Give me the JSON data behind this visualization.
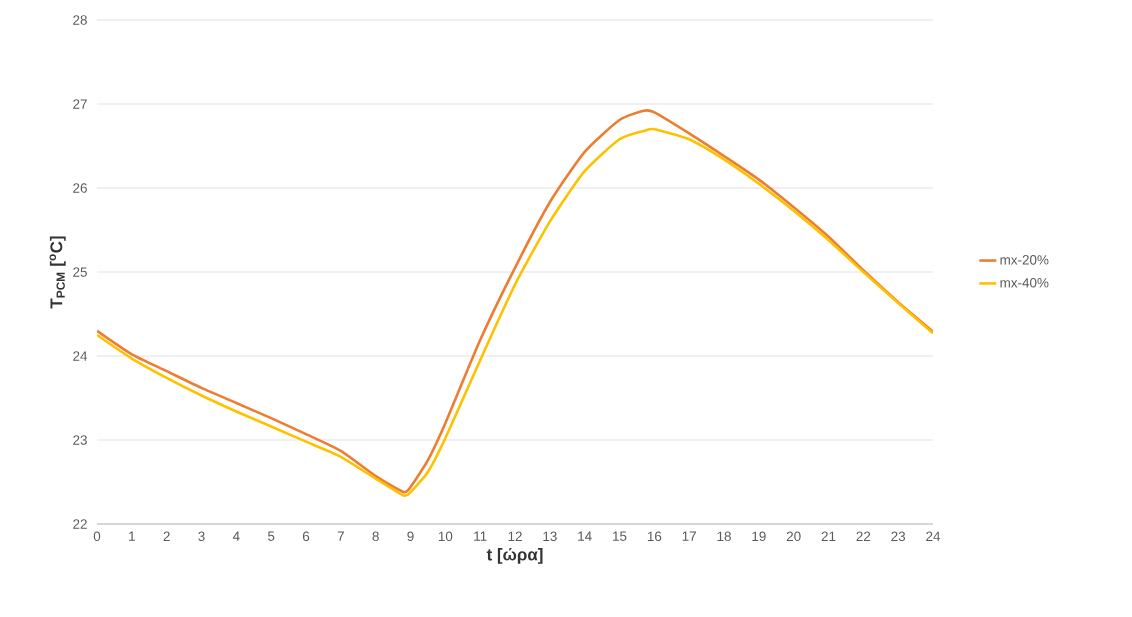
{
  "chart_data": {
    "type": "line",
    "xlabel": "t [ώρα]",
    "ylabel": "**T$_{PCM}$ [$^{o}$C]**",
    "x": [
      0,
      1,
      2,
      3,
      4,
      5,
      6,
      7,
      8,
      8.8,
      9,
      9.5,
      10,
      11,
      12,
      13,
      14,
      15,
      15.7,
      16,
      17,
      18,
      19,
      20,
      21,
      22,
      23,
      24
    ],
    "series": [
      {
        "name": "mx-20%",
        "color": "#ed7d31",
        "values": [
          24.3,
          24.02,
          23.82,
          23.62,
          23.44,
          23.26,
          23.07,
          22.87,
          22.57,
          22.38,
          22.44,
          22.76,
          23.2,
          24.19,
          25.05,
          25.83,
          26.43,
          26.81,
          26.92,
          26.9,
          26.65,
          26.38,
          26.1,
          25.77,
          25.42,
          25.02,
          24.64,
          24.29
        ]
      },
      {
        "name": "mx-40%",
        "color": "#ffc000",
        "values": [
          24.25,
          23.97,
          23.74,
          23.53,
          23.34,
          23.16,
          22.98,
          22.8,
          22.54,
          22.34,
          22.38,
          22.62,
          23.02,
          23.95,
          24.85,
          25.6,
          26.2,
          26.58,
          26.68,
          26.7,
          26.58,
          26.34,
          26.05,
          25.73,
          25.38,
          25.0,
          24.63,
          24.27
        ]
      }
    ],
    "xlim": [
      0,
      24
    ],
    "ylim": [
      22,
      28
    ],
    "xticks": [
      0,
      1,
      2,
      3,
      4,
      5,
      6,
      7,
      8,
      9,
      10,
      11,
      12,
      13,
      14,
      15,
      16,
      17,
      18,
      19,
      20,
      21,
      22,
      23,
      24
    ],
    "yticks": [
      22,
      23,
      24,
      25,
      26,
      27,
      28
    ],
    "grid": "y",
    "legend": "right",
    "marker": "none",
    "line_style": "solid"
  }
}
